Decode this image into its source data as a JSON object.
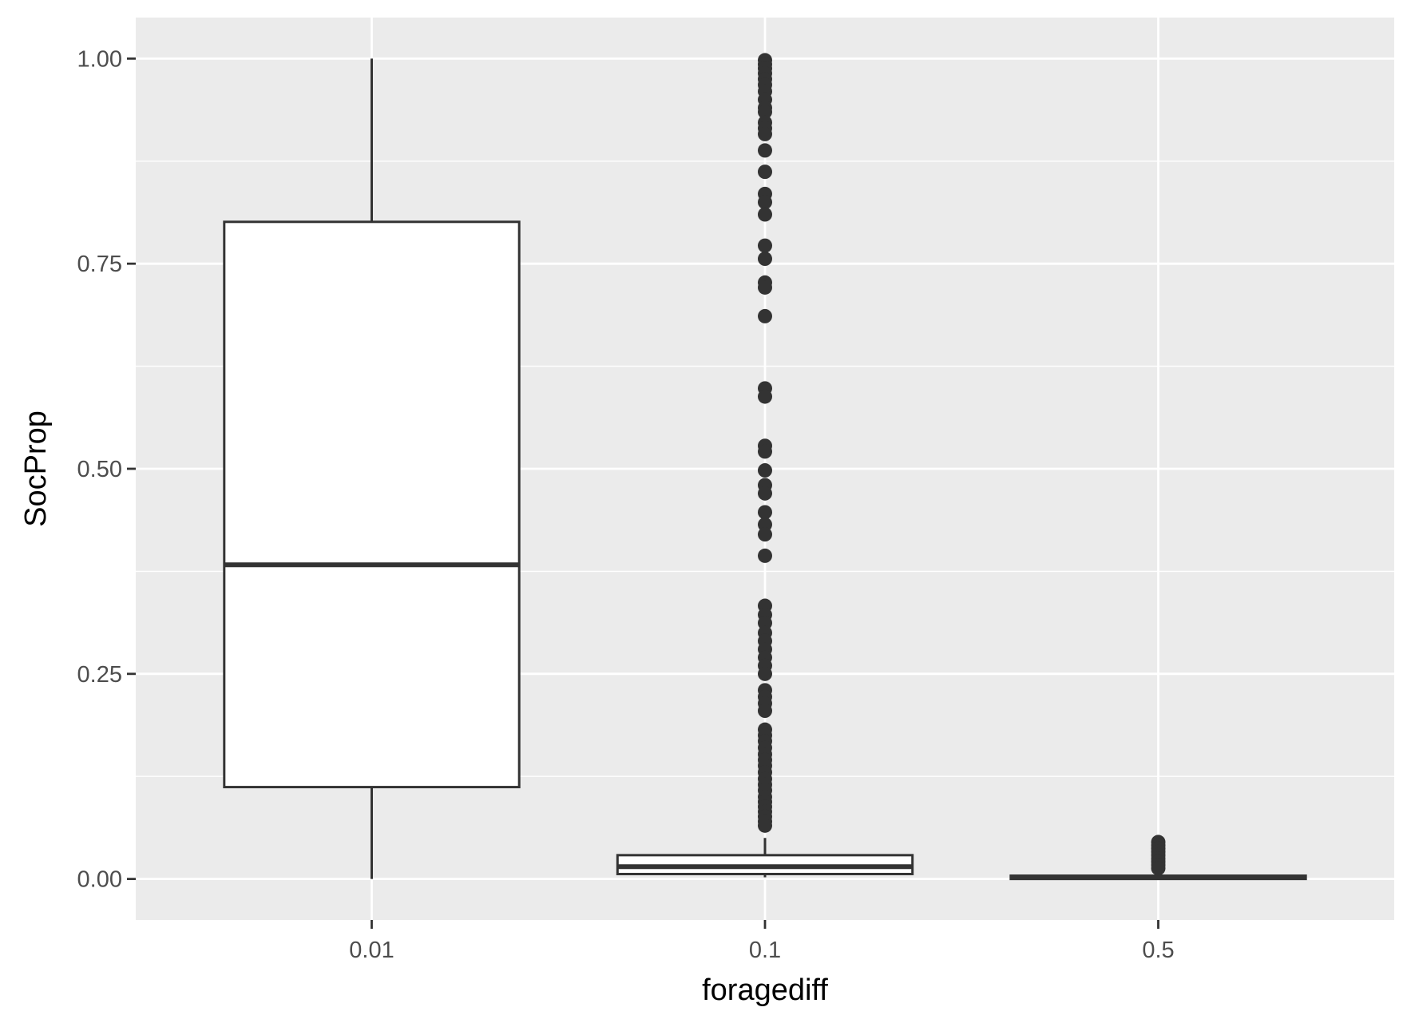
{
  "chart_data": {
    "type": "boxplot",
    "title": "",
    "xlabel": "foragediff",
    "ylabel": "SocProp",
    "ylim": [
      -0.05,
      1.05
    ],
    "yticks": [
      0.0,
      0.25,
      0.5,
      0.75,
      1.0
    ],
    "ytick_labels": [
      "0.00",
      "0.25",
      "0.50",
      "0.75",
      "1.00"
    ],
    "categories": [
      "0.01",
      "0.1",
      "0.5"
    ],
    "grid": true,
    "background": "#ebebeb",
    "box_fill": "#ffffff",
    "line_color": "#333333",
    "grid_color": "#ffffff",
    "boxes": [
      {
        "category": "0.01",
        "whisker_low": 0.0,
        "q1": 0.112,
        "median": 0.383,
        "q3": 0.801,
        "whisker_high": 1.0,
        "outliers": []
      },
      {
        "category": "0.1",
        "whisker_low": 0.002,
        "q1": 0.006,
        "median": 0.015,
        "q3": 0.029,
        "whisker_high": 0.05,
        "outliers": [
          0.998,
          0.993,
          0.988,
          0.982,
          0.975,
          0.968,
          0.96,
          0.95,
          0.94,
          0.935,
          0.922,
          0.915,
          0.908,
          0.888,
          0.862,
          0.835,
          0.825,
          0.81,
          0.772,
          0.756,
          0.727,
          0.721,
          0.686,
          0.598,
          0.588,
          0.528,
          0.521,
          0.498,
          0.48,
          0.47,
          0.447,
          0.432,
          0.42,
          0.394,
          0.333,
          0.322,
          0.312,
          0.3,
          0.29,
          0.28,
          0.27,
          0.26,
          0.25,
          0.23,
          0.222,
          0.214,
          0.205,
          0.182,
          0.175,
          0.168,
          0.16,
          0.152,
          0.145,
          0.138,
          0.13,
          0.122,
          0.115,
          0.108,
          0.1,
          0.094,
          0.088,
          0.082,
          0.076,
          0.07,
          0.065
        ]
      },
      {
        "category": "0.5",
        "whisker_low": 0.0,
        "q1": 0.0,
        "median": 0.002,
        "q3": 0.004,
        "whisker_high": 0.01,
        "outliers": [
          0.045,
          0.041,
          0.037,
          0.033,
          0.029,
          0.025,
          0.021,
          0.017,
          0.013
        ]
      }
    ]
  }
}
